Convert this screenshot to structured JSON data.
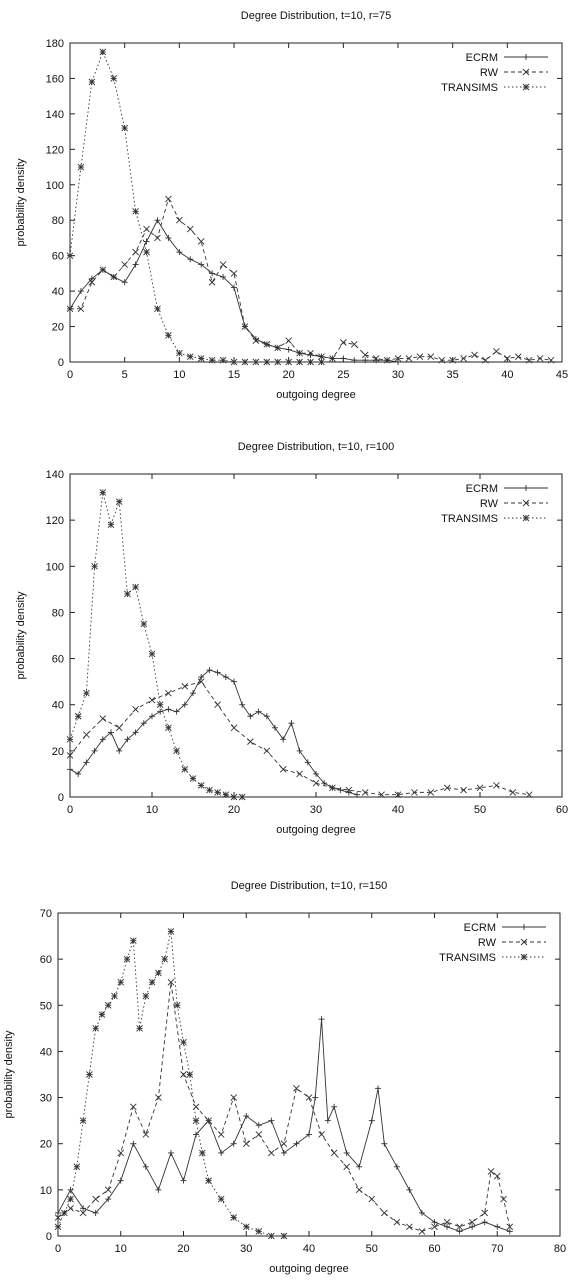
{
  "chart_data": [
    {
      "type": "line",
      "title": "Degree Distribution, t=10, r=75",
      "xlabel": "outgoing degree",
      "ylabel": "probability density",
      "xlim": [
        0,
        45
      ],
      "ylim": [
        0,
        180
      ],
      "xticks": [
        0,
        5,
        10,
        15,
        20,
        25,
        30,
        35,
        40,
        45
      ],
      "yticks": [
        0,
        20,
        40,
        60,
        80,
        100,
        120,
        140,
        160,
        180
      ],
      "legend_position": "top-right",
      "series": [
        {
          "name": "ECRM",
          "dash": "",
          "marker": "plus",
          "x": [
            0,
            1,
            2,
            3,
            4,
            5,
            6,
            7,
            8,
            9,
            10,
            11,
            12,
            13,
            14,
            15,
            16,
            17,
            18,
            19,
            20,
            21,
            22,
            23,
            24,
            25,
            26,
            27,
            28,
            29,
            30
          ],
          "y": [
            30,
            40,
            47,
            52,
            48,
            45,
            55,
            68,
            80,
            70,
            62,
            58,
            55,
            50,
            48,
            42,
            20,
            13,
            10,
            8,
            7,
            5,
            4,
            3,
            2,
            2,
            1,
            1,
            1,
            1,
            0
          ]
        },
        {
          "name": "RW",
          "dash": "4,3",
          "marker": "x",
          "x": [
            0,
            1,
            2,
            3,
            4,
            5,
            6,
            7,
            8,
            9,
            10,
            11,
            12,
            13,
            14,
            15,
            16,
            17,
            18,
            19,
            20,
            21,
            22,
            23,
            24,
            25,
            26,
            27,
            28,
            29,
            30,
            31,
            32,
            33,
            34,
            35,
            36,
            37,
            38,
            39,
            40,
            41,
            42,
            43,
            44
          ],
          "y": [
            30,
            30,
            45,
            52,
            48,
            55,
            62,
            75,
            70,
            92,
            80,
            75,
            68,
            45,
            55,
            50,
            20,
            12,
            10,
            8,
            12,
            5,
            5,
            3,
            2,
            11,
            10,
            4,
            2,
            1,
            2,
            2,
            3,
            3,
            1,
            1,
            2,
            4,
            1,
            6,
            2,
            3,
            1,
            2,
            1
          ]
        },
        {
          "name": "TRANSIMS",
          "dash": "1.5,2.5",
          "marker": "star",
          "x": [
            0,
            1,
            2,
            3,
            4,
            5,
            6,
            7,
            8,
            9,
            10,
            11,
            12,
            13,
            14,
            15,
            16,
            17,
            18,
            19,
            20,
            21,
            22,
            23
          ],
          "y": [
            60,
            110,
            158,
            175,
            160,
            132,
            85,
            62,
            30,
            15,
            5,
            3,
            2,
            1,
            1,
            0,
            0,
            0,
            0,
            0,
            0,
            0,
            0,
            0
          ]
        }
      ]
    },
    {
      "type": "line",
      "title": "Degree Distribution, t=10, r=100",
      "xlabel": "outgoing degree",
      "ylabel": "probability density",
      "xlim": [
        0,
        60
      ],
      "ylim": [
        0,
        140
      ],
      "xticks": [
        0,
        10,
        20,
        30,
        40,
        50,
        60
      ],
      "yticks": [
        0,
        20,
        40,
        60,
        80,
        100,
        120,
        140
      ],
      "legend_position": "top-right",
      "series": [
        {
          "name": "ECRM",
          "dash": "",
          "marker": "plus",
          "x": [
            0,
            1,
            2,
            3,
            4,
            5,
            6,
            7,
            8,
            9,
            10,
            11,
            12,
            13,
            14,
            15,
            16,
            17,
            18,
            19,
            20,
            21,
            22,
            23,
            24,
            25,
            26,
            27,
            28,
            29,
            30,
            31,
            32,
            33,
            34,
            35
          ],
          "y": [
            12,
            10,
            15,
            20,
            25,
            28,
            20,
            25,
            28,
            32,
            35,
            37,
            38,
            37,
            40,
            45,
            52,
            55,
            54,
            52,
            50,
            40,
            35,
            37,
            35,
            30,
            25,
            32,
            20,
            15,
            10,
            6,
            4,
            3,
            2,
            1
          ]
        },
        {
          "name": "RW",
          "dash": "4,3",
          "marker": "x",
          "x": [
            0,
            2,
            4,
            6,
            8,
            10,
            12,
            14,
            16,
            18,
            20,
            22,
            24,
            26,
            28,
            30,
            32,
            34,
            36,
            38,
            40,
            42,
            44,
            46,
            48,
            50,
            52,
            54,
            56
          ],
          "y": [
            18,
            27,
            34,
            30,
            38,
            42,
            45,
            48,
            50,
            40,
            30,
            24,
            20,
            12,
            10,
            6,
            4,
            3,
            2,
            1,
            1,
            2,
            2,
            4,
            3,
            4,
            5,
            2,
            1
          ]
        },
        {
          "name": "TRANSIMS",
          "dash": "1.5,2.5",
          "marker": "star",
          "x": [
            0,
            1,
            2,
            3,
            4,
            5,
            6,
            7,
            8,
            9,
            10,
            11,
            12,
            13,
            14,
            15,
            16,
            17,
            18,
            19,
            20,
            21
          ],
          "y": [
            25,
            35,
            45,
            100,
            132,
            118,
            128,
            88,
            91,
            75,
            62,
            40,
            30,
            20,
            12,
            8,
            5,
            3,
            2,
            1,
            0,
            0
          ]
        }
      ]
    },
    {
      "type": "line",
      "title": "Degree Distribution, t=10, r=150",
      "xlabel": "outgoing degree",
      "ylabel": "probability density",
      "xlim": [
        0,
        80
      ],
      "ylim": [
        0,
        70
      ],
      "xticks": [
        0,
        10,
        20,
        30,
        40,
        50,
        60,
        70,
        80
      ],
      "yticks": [
        0,
        10,
        20,
        30,
        40,
        50,
        60,
        70
      ],
      "legend_position": "top-right",
      "series": [
        {
          "name": "ECRM",
          "dash": "",
          "marker": "plus",
          "x": [
            0,
            2,
            4,
            6,
            8,
            10,
            12,
            14,
            16,
            18,
            20,
            22,
            24,
            26,
            28,
            30,
            32,
            34,
            36,
            38,
            40,
            41,
            42,
            43,
            44,
            46,
            48,
            50,
            51,
            52,
            54,
            56,
            58,
            60,
            62,
            64,
            66,
            68,
            70,
            72
          ],
          "y": [
            5,
            10,
            6,
            5,
            8,
            12,
            20,
            15,
            10,
            18,
            12,
            22,
            25,
            18,
            20,
            26,
            24,
            25,
            18,
            20,
            22,
            30,
            47,
            25,
            28,
            18,
            15,
            25,
            32,
            20,
            15,
            10,
            5,
            3,
            2,
            1,
            2,
            3,
            2,
            1
          ]
        },
        {
          "name": "RW",
          "dash": "4,3",
          "marker": "x",
          "x": [
            0,
            2,
            4,
            6,
            8,
            10,
            12,
            14,
            16,
            18,
            20,
            22,
            24,
            26,
            28,
            30,
            32,
            34,
            36,
            38,
            40,
            42,
            44,
            46,
            48,
            50,
            52,
            54,
            56,
            58,
            60,
            62,
            64,
            66,
            68,
            69,
            70,
            71,
            72
          ],
          "y": [
            4,
            6,
            5,
            8,
            10,
            18,
            28,
            22,
            30,
            55,
            35,
            28,
            25,
            22,
            30,
            20,
            22,
            18,
            20,
            32,
            30,
            22,
            18,
            15,
            10,
            8,
            5,
            3,
            2,
            1,
            2,
            3,
            2,
            3,
            5,
            14,
            13,
            8,
            2
          ]
        },
        {
          "name": "TRANSIMS",
          "dash": "1.5,2.5",
          "marker": "star",
          "x": [
            0,
            1,
            2,
            3,
            4,
            5,
            6,
            7,
            8,
            9,
            10,
            11,
            12,
            13,
            14,
            15,
            16,
            17,
            18,
            19,
            20,
            21,
            22,
            23,
            24,
            26,
            28,
            30,
            32,
            34,
            36
          ],
          "y": [
            2,
            5,
            8,
            15,
            25,
            35,
            45,
            48,
            50,
            52,
            55,
            60,
            64,
            45,
            52,
            55,
            57,
            60,
            66,
            50,
            42,
            35,
            25,
            18,
            12,
            8,
            4,
            2,
            1,
            0,
            0
          ]
        }
      ]
    }
  ]
}
